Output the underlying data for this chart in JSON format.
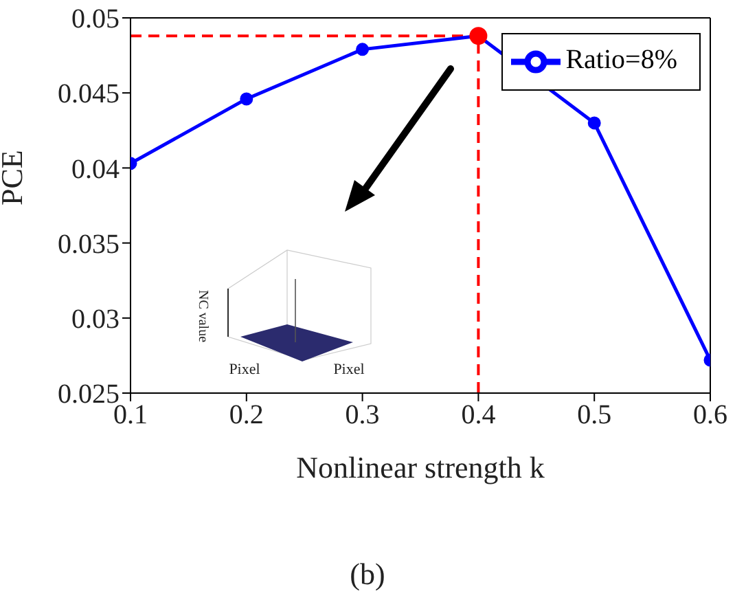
{
  "chart_data": {
    "type": "line",
    "xlabel": "Nonlinear strength k",
    "ylabel": "PCE",
    "x": [
      0.1,
      0.2,
      0.3,
      0.4,
      0.5,
      0.6
    ],
    "series": [
      {
        "name": "Ratio=8%",
        "color": "#0000ff",
        "values": [
          0.0403,
          0.0446,
          0.0479,
          0.0488,
          0.043,
          0.0272
        ]
      },
      {
        "type": "scatter",
        "color": "#ff0000",
        "x": [
          0.4
        ],
        "values": [
          0.0488
        ]
      }
    ],
    "xlim": [
      0.1,
      0.6
    ],
    "xticks": [
      0.1,
      0.2,
      0.3,
      0.4,
      0.5,
      0.6
    ],
    "ylim": [
      0.025,
      0.05
    ],
    "yticks": [
      0.025,
      0.03,
      0.035,
      0.04,
      0.045,
      0.05
    ],
    "ref_lines": [
      {
        "axis": "y",
        "value": 0.0488,
        "color": "#ff0000",
        "line_style": "dashed"
      },
      {
        "axis": "x",
        "value": 0.4,
        "color": "#ff0000",
        "line_style": "dashed"
      }
    ],
    "legend": "top right",
    "marker": "circle",
    "line_style": "solid",
    "annotations": [
      "NC value",
      "Pixel",
      "Pixel",
      "(b)"
    ]
  }
}
